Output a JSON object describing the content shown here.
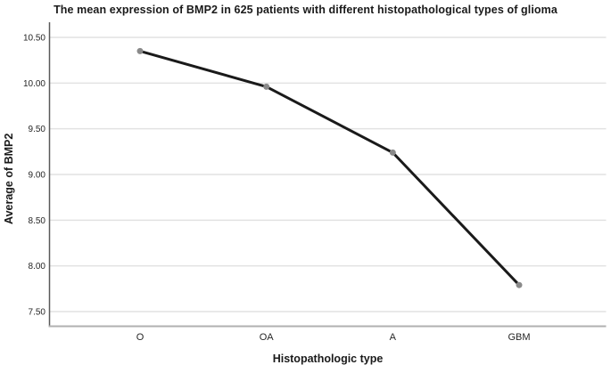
{
  "chart_data": {
    "type": "line",
    "title": "The mean expression of BMP2 in 625 patients with different histopathological types of glioma",
    "xlabel": "Histopathologic type",
    "ylabel": "Average of BMP2",
    "categories": [
      "O",
      "OA",
      "A",
      "GBM"
    ],
    "series": [
      {
        "name": "Average of BMP2",
        "values": [
          10.35,
          9.96,
          9.24,
          7.79
        ]
      }
    ],
    "yticks": [
      {
        "value": 10.5,
        "label": "10.50"
      },
      {
        "value": 10.0,
        "label": "10.00"
      },
      {
        "value": 9.5,
        "label": "9.50"
      },
      {
        "value": 9.0,
        "label": "9.00"
      },
      {
        "value": 8.5,
        "label": "8.50"
      },
      {
        "value": 8.0,
        "label": "8.00"
      },
      {
        "value": 7.5,
        "label": "7.50"
      }
    ],
    "ylim": [
      7.34,
      10.67
    ],
    "grid": true,
    "legend": false
  },
  "colors": {
    "line": "#1a1a1a",
    "marker": "#8a8a8a",
    "gridline": "#e2e2e2",
    "y_axis": "#5a5a5a",
    "x_axis": "#b0b0b0",
    "text": "#262626",
    "background": "#ffffff"
  }
}
